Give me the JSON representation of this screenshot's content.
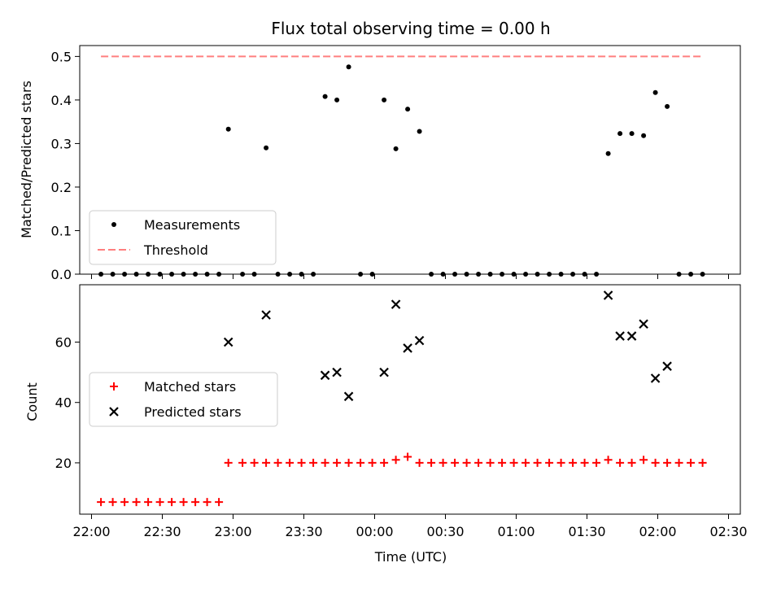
{
  "chart_data": [
    {
      "type": "scatter",
      "title": "Flux total observing time = 0.00 h",
      "xlabel": "",
      "ylabel": "Matched/Predicted stars",
      "ylim": [
        0,
        0.525
      ],
      "xlim": [
        "21:55",
        "02:35"
      ],
      "xtick_labels_visible": false,
      "yticks": [
        "0.0",
        "0.1",
        "0.2",
        "0.3",
        "0.4",
        "0.5"
      ],
      "legend_position": "lower-left",
      "colors": {
        "measurements": "#000000",
        "threshold": "#ff7f7f"
      },
      "series": [
        {
          "name": "Measurements",
          "marker": "dot",
          "points": [
            [
              "22:04",
              0
            ],
            [
              "22:09",
              0
            ],
            [
              "22:14",
              0
            ],
            [
              "22:19",
              0
            ],
            [
              "22:24",
              0
            ],
            [
              "22:29",
              0
            ],
            [
              "22:34",
              0
            ],
            [
              "22:39",
              0
            ],
            [
              "22:44",
              0
            ],
            [
              "22:49",
              0
            ],
            [
              "22:54",
              0
            ],
            [
              "22:58",
              0.333
            ],
            [
              "23:04",
              0
            ],
            [
              "23:09",
              0
            ],
            [
              "23:14",
              0.29
            ],
            [
              "23:19",
              0
            ],
            [
              "23:24",
              0
            ],
            [
              "23:29",
              0
            ],
            [
              "23:34",
              0
            ],
            [
              "23:39",
              0.408
            ],
            [
              "23:44",
              0.4
            ],
            [
              "23:49",
              0.476
            ],
            [
              "23:54",
              0
            ],
            [
              "23:59",
              0
            ],
            [
              "00:04",
              0.4
            ],
            [
              "00:09",
              0.288
            ],
            [
              "00:14",
              0.379
            ],
            [
              "00:19",
              0.328
            ],
            [
              "00:24",
              0
            ],
            [
              "00:29",
              0
            ],
            [
              "00:34",
              0
            ],
            [
              "00:39",
              0
            ],
            [
              "00:44",
              0
            ],
            [
              "00:49",
              0
            ],
            [
              "00:54",
              0
            ],
            [
              "00:59",
              0
            ],
            [
              "01:04",
              0
            ],
            [
              "01:09",
              0
            ],
            [
              "01:14",
              0
            ],
            [
              "01:19",
              0
            ],
            [
              "01:24",
              0
            ],
            [
              "01:29",
              0
            ],
            [
              "01:34",
              0
            ],
            [
              "01:39",
              0.277
            ],
            [
              "01:44",
              0.323
            ],
            [
              "01:49",
              0.323
            ],
            [
              "01:54",
              0.318
            ],
            [
              "01:59",
              0.417
            ],
            [
              "02:04",
              0.385
            ],
            [
              "02:09",
              0
            ],
            [
              "02:14",
              0
            ],
            [
              "02:19",
              0
            ]
          ]
        },
        {
          "name": "Threshold",
          "style": "dashed-line",
          "points": [
            [
              "22:04",
              0.5
            ],
            [
              "02:19",
              0.5
            ]
          ]
        }
      ]
    },
    {
      "type": "scatter",
      "title": "",
      "xlabel": "Time (UTC)",
      "ylabel": "Count",
      "ylim": [
        3,
        79
      ],
      "xlim": [
        "21:55",
        "02:35"
      ],
      "xticks": [
        "22:00",
        "22:30",
        "23:00",
        "23:30",
        "00:00",
        "00:30",
        "01:00",
        "01:30",
        "02:00",
        "02:30"
      ],
      "yticks": [
        "20",
        "40",
        "60"
      ],
      "legend_position": "center-left",
      "colors": {
        "matched": "#ff0000",
        "predicted": "#000000"
      },
      "series": [
        {
          "name": "Matched stars",
          "marker": "plus",
          "points": [
            [
              "22:04",
              7
            ],
            [
              "22:09",
              7
            ],
            [
              "22:14",
              7
            ],
            [
              "22:19",
              7
            ],
            [
              "22:24",
              7
            ],
            [
              "22:29",
              7
            ],
            [
              "22:34",
              7
            ],
            [
              "22:39",
              7
            ],
            [
              "22:44",
              7
            ],
            [
              "22:49",
              7
            ],
            [
              "22:54",
              7
            ],
            [
              "22:58",
              20
            ],
            [
              "23:04",
              20
            ],
            [
              "23:09",
              20
            ],
            [
              "23:14",
              20
            ],
            [
              "23:19",
              20
            ],
            [
              "23:24",
              20
            ],
            [
              "23:29",
              20
            ],
            [
              "23:34",
              20
            ],
            [
              "23:39",
              20
            ],
            [
              "23:44",
              20
            ],
            [
              "23:49",
              20
            ],
            [
              "23:54",
              20
            ],
            [
              "23:59",
              20
            ],
            [
              "00:04",
              20
            ],
            [
              "00:09",
              21
            ],
            [
              "00:14",
              22
            ],
            [
              "00:19",
              20
            ],
            [
              "00:24",
              20
            ],
            [
              "00:29",
              20
            ],
            [
              "00:34",
              20
            ],
            [
              "00:39",
              20
            ],
            [
              "00:44",
              20
            ],
            [
              "00:49",
              20
            ],
            [
              "00:54",
              20
            ],
            [
              "00:59",
              20
            ],
            [
              "01:04",
              20
            ],
            [
              "01:09",
              20
            ],
            [
              "01:14",
              20
            ],
            [
              "01:19",
              20
            ],
            [
              "01:24",
              20
            ],
            [
              "01:29",
              20
            ],
            [
              "01:34",
              20
            ],
            [
              "01:39",
              21
            ],
            [
              "01:44",
              20
            ],
            [
              "01:49",
              20
            ],
            [
              "01:54",
              21
            ],
            [
              "01:59",
              20
            ],
            [
              "02:04",
              20
            ],
            [
              "02:09",
              20
            ],
            [
              "02:14",
              20
            ],
            [
              "02:19",
              20
            ]
          ]
        },
        {
          "name": "Predicted stars",
          "marker": "x",
          "points": [
            [
              "22:58",
              60
            ],
            [
              "23:14",
              69
            ],
            [
              "23:39",
              49
            ],
            [
              "23:44",
              50
            ],
            [
              "23:49",
              42
            ],
            [
              "00:04",
              50
            ],
            [
              "00:09",
              72.5
            ],
            [
              "00:14",
              58
            ],
            [
              "00:19",
              60.5
            ],
            [
              "01:39",
              75.5
            ],
            [
              "01:44",
              62
            ],
            [
              "01:49",
              62
            ],
            [
              "01:54",
              66
            ],
            [
              "01:59",
              48
            ],
            [
              "02:04",
              52
            ]
          ]
        }
      ]
    }
  ]
}
